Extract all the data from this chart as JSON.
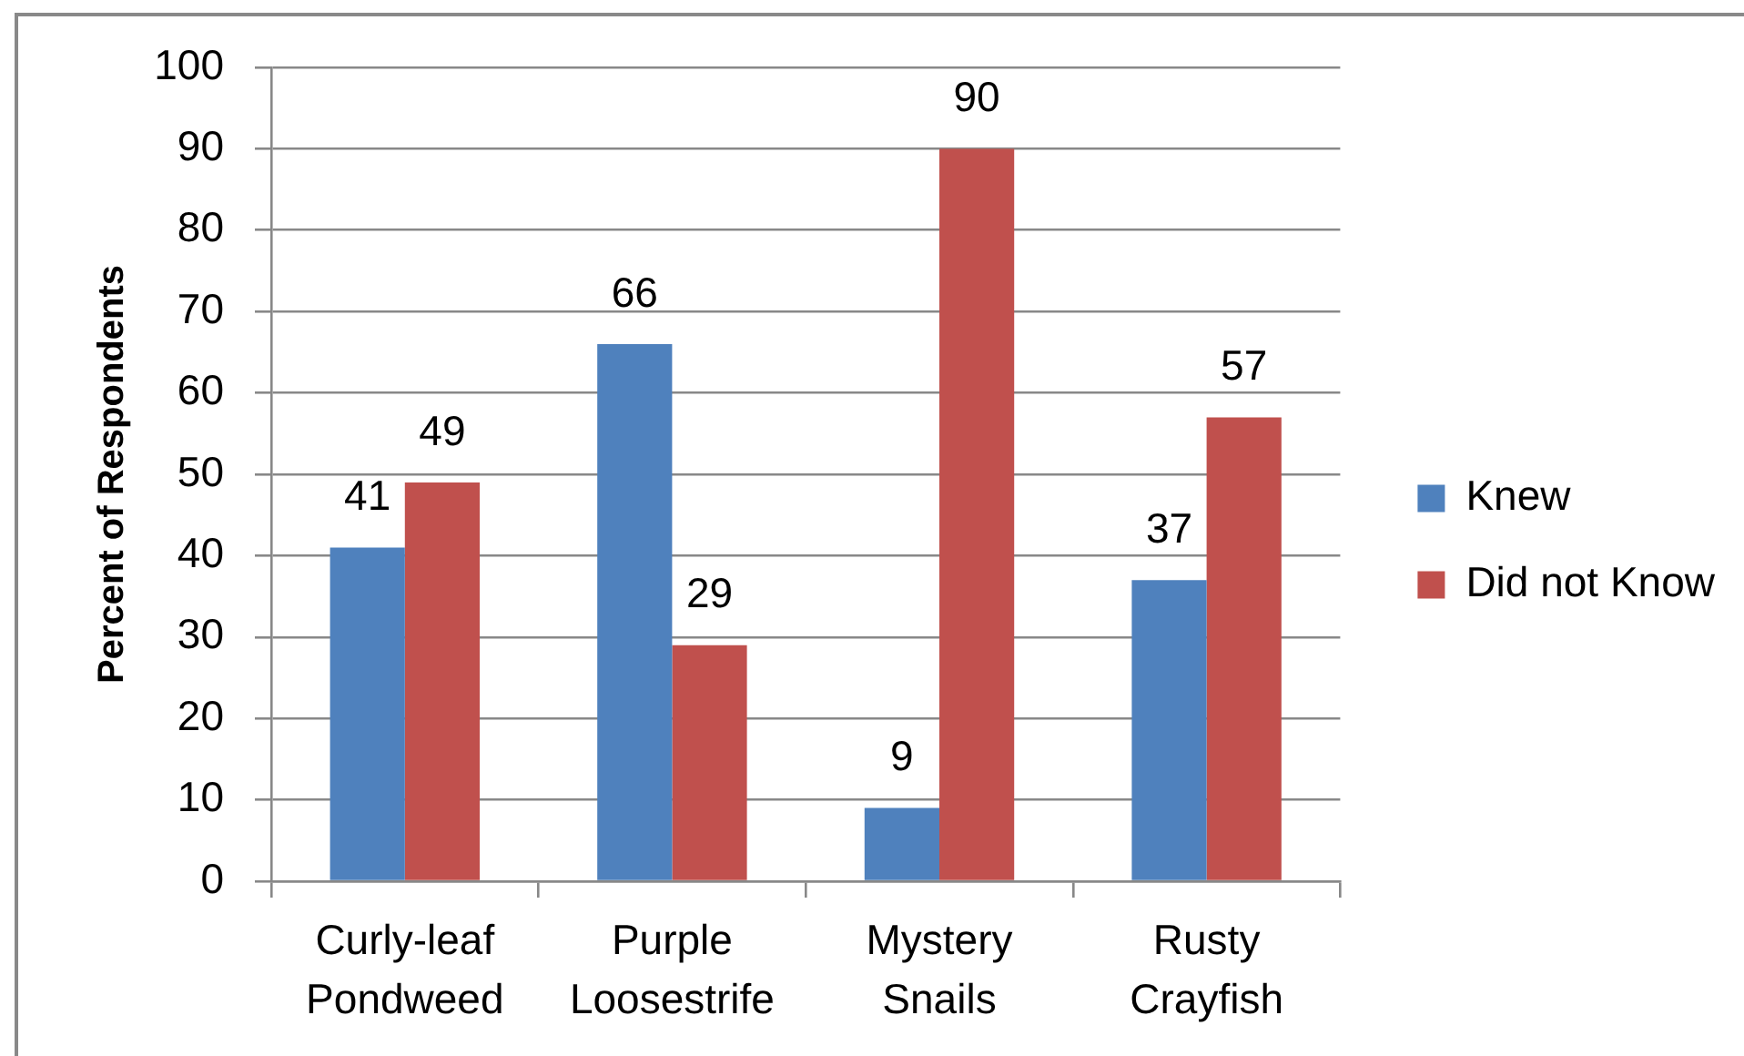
{
  "chart_data": {
    "type": "bar",
    "categories": [
      "Curly-leaf Pondweed",
      "Purple Loosestrife",
      "Mystery Snails",
      "Rusty Crayfish"
    ],
    "series": [
      {
        "name": "Knew",
        "color": "#4f81bd",
        "values": [
          41,
          66,
          9,
          37
        ]
      },
      {
        "name": "Did not Know",
        "color": "#c0504d",
        "values": [
          49,
          29,
          90,
          57
        ]
      }
    ],
    "ylabel": "Percent of Respondents",
    "ylim": [
      0,
      100
    ],
    "yticks": [
      0,
      10,
      20,
      30,
      40,
      50,
      60,
      70,
      80,
      90,
      100
    ],
    "grid": "y",
    "legend": "right",
    "data_labels": true
  }
}
